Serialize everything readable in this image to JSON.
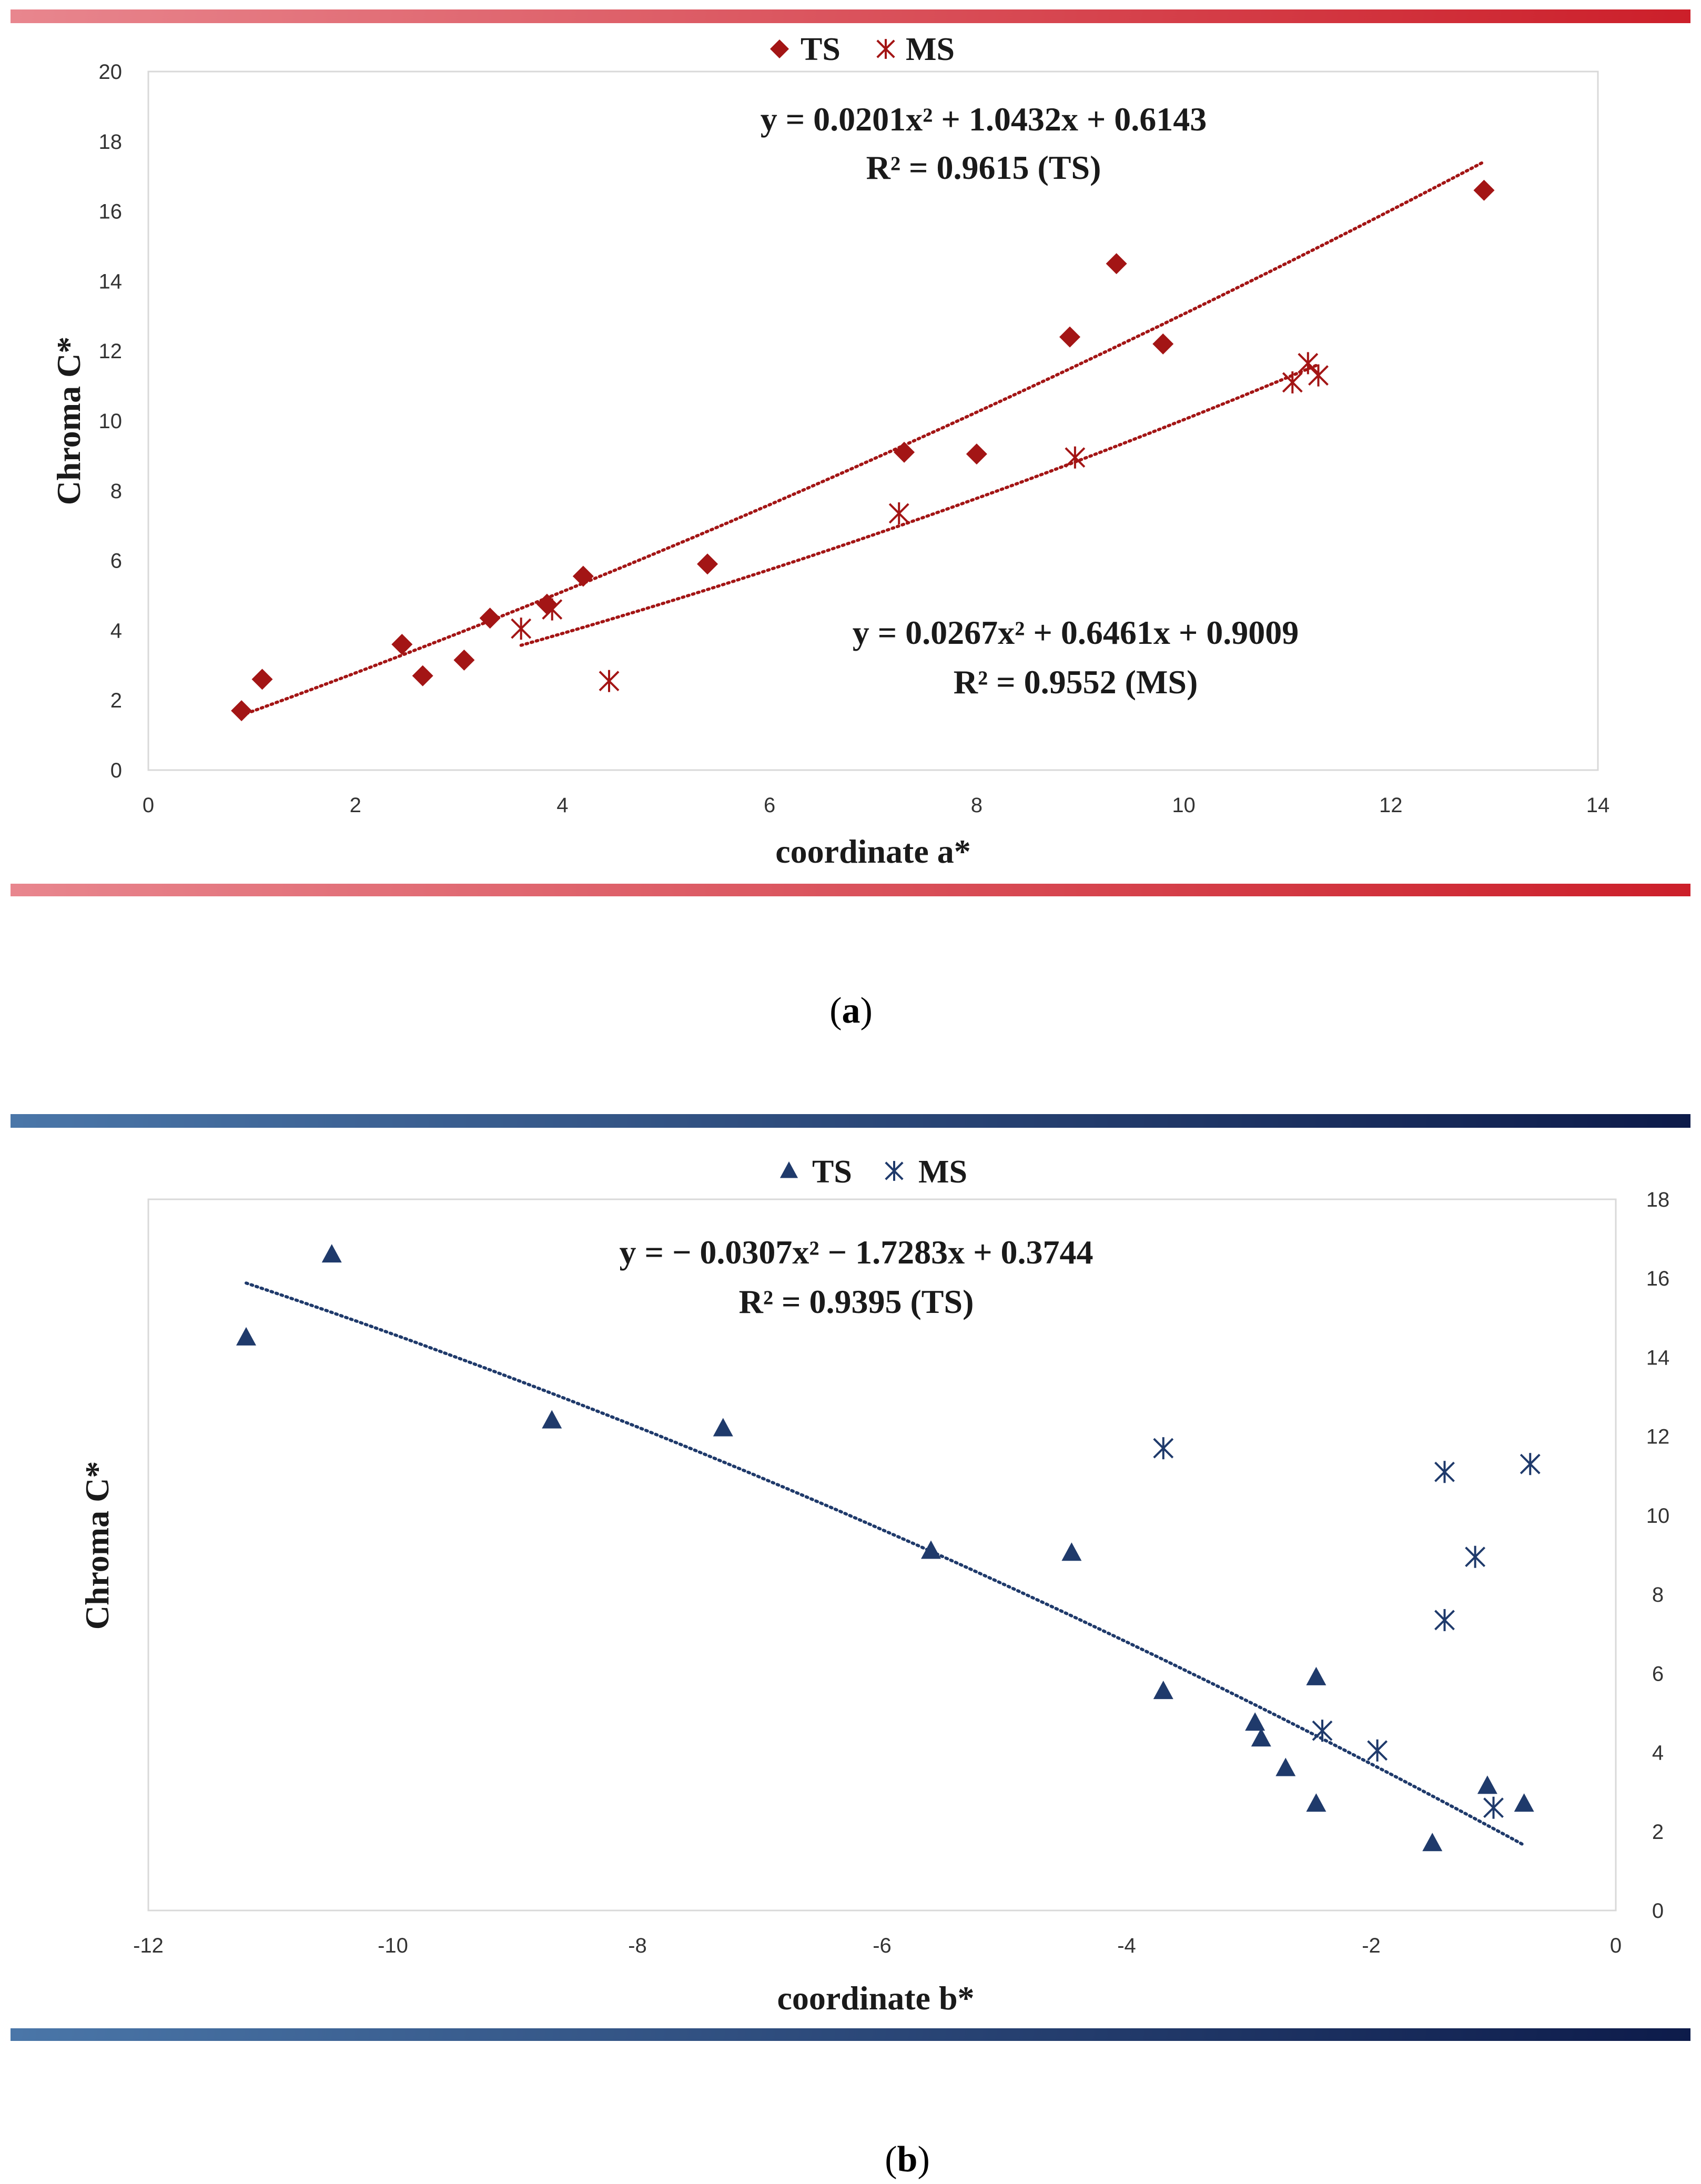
{
  "chart_data": [
    {
      "type": "scatter",
      "panel": "a",
      "caption_letter": "a",
      "caption_open": "(",
      "caption_close": ")",
      "xlabel": "coordinate a*",
      "ylabel": "Chroma C*",
      "xlim": [
        0,
        14
      ],
      "ylim": [
        0,
        20
      ],
      "xticks": [
        0,
        2,
        4,
        6,
        8,
        10,
        12,
        14
      ],
      "yticks": [
        0,
        2,
        4,
        6,
        8,
        10,
        12,
        14,
        16,
        18,
        20
      ],
      "y_axis_side": "left",
      "legend_position": "top-center",
      "accent_colors": [
        "#e8868e",
        "#cc1f2a"
      ],
      "series": [
        {
          "name": "TS",
          "marker": "diamond",
          "color": "#a31515",
          "points": [
            [
              0.9,
              1.7
            ],
            [
              1.1,
              2.6
            ],
            [
              2.45,
              3.6
            ],
            [
              2.65,
              2.7
            ],
            [
              3.05,
              3.15
            ],
            [
              3.3,
              4.35
            ],
            [
              3.85,
              4.75
            ],
            [
              4.2,
              5.55
            ],
            [
              5.4,
              5.9
            ],
            [
              7.3,
              9.1
            ],
            [
              8.0,
              9.05
            ],
            [
              8.9,
              12.4
            ],
            [
              9.35,
              14.5
            ],
            [
              9.8,
              12.2
            ],
            [
              12.9,
              16.6
            ]
          ],
          "fit": {
            "a": 0.0201,
            "b": 1.0432,
            "c": 0.6143,
            "x_range": [
              0.9,
              12.9
            ]
          },
          "equation": "y = 0.0201x² + 1.0432x + 0.6143",
          "r2": "R² = 0.9615 (TS)"
        },
        {
          "name": "MS",
          "marker": "asterisk",
          "color": "#a31515",
          "points": [
            [
              3.6,
              4.05
            ],
            [
              3.9,
              4.6
            ],
            [
              4.45,
              2.55
            ],
            [
              7.25,
              7.35
            ],
            [
              8.95,
              8.95
            ],
            [
              11.05,
              11.1
            ],
            [
              11.2,
              11.65
            ],
            [
              11.3,
              11.3
            ]
          ],
          "fit": {
            "a": 0.0267,
            "b": 0.6461,
            "c": 0.9009,
            "x_range": [
              3.6,
              11.3
            ]
          },
          "equation": "y = 0.0267x² + 0.6461x + 0.9009",
          "r2": "R² = 0.9552 (MS)"
        }
      ]
    },
    {
      "type": "scatter",
      "panel": "b",
      "caption_letter": "b",
      "caption_open": "(",
      "caption_close": ")",
      "xlabel": "coordinate b*",
      "ylabel": "Chroma C*",
      "xlim": [
        -12,
        0
      ],
      "ylim": [
        0,
        18
      ],
      "xticks": [
        -12,
        -10,
        -8,
        -6,
        -4,
        -2,
        0
      ],
      "yticks": [
        0,
        2,
        4,
        6,
        8,
        10,
        12,
        14,
        16,
        18
      ],
      "y_axis_side": "right",
      "legend_position": "top-center",
      "accent_colors": [
        "#4a76a8",
        "#0d1b4a"
      ],
      "series": [
        {
          "name": "TS",
          "marker": "triangle",
          "color": "#1f3a6b",
          "points": [
            [
              -11.2,
              14.5
            ],
            [
              -10.5,
              16.6
            ],
            [
              -8.7,
              12.4
            ],
            [
              -7.3,
              12.2
            ],
            [
              -5.6,
              9.1
            ],
            [
              -4.45,
              9.05
            ],
            [
              -3.7,
              5.55
            ],
            [
              -2.95,
              4.75
            ],
            [
              -2.9,
              4.35
            ],
            [
              -2.7,
              3.6
            ],
            [
              -2.45,
              5.9
            ],
            [
              -2.45,
              2.7
            ],
            [
              -1.5,
              1.7
            ],
            [
              -1.05,
              3.15
            ],
            [
              -0.75,
              2.7
            ]
          ],
          "fit": {
            "a": -0.0307,
            "b": -1.7283,
            "c": 0.3744,
            "x_range": [
              -11.2,
              -0.75
            ]
          },
          "equation": "y = − 0.0307x² − 1.7283x + 0.3744",
          "r2": "R² = 0.9395 (TS)"
        },
        {
          "name": "MS",
          "marker": "asterisk",
          "color": "#1f3a6b",
          "points": [
            [
              -3.7,
              11.7
            ],
            [
              -2.4,
              4.55
            ],
            [
              -1.95,
              4.05
            ],
            [
              -1.4,
              7.35
            ],
            [
              -1.4,
              11.1
            ],
            [
              -1.15,
              8.95
            ],
            [
              -1.0,
              2.6
            ],
            [
              -0.7,
              11.3
            ]
          ]
        }
      ]
    }
  ]
}
